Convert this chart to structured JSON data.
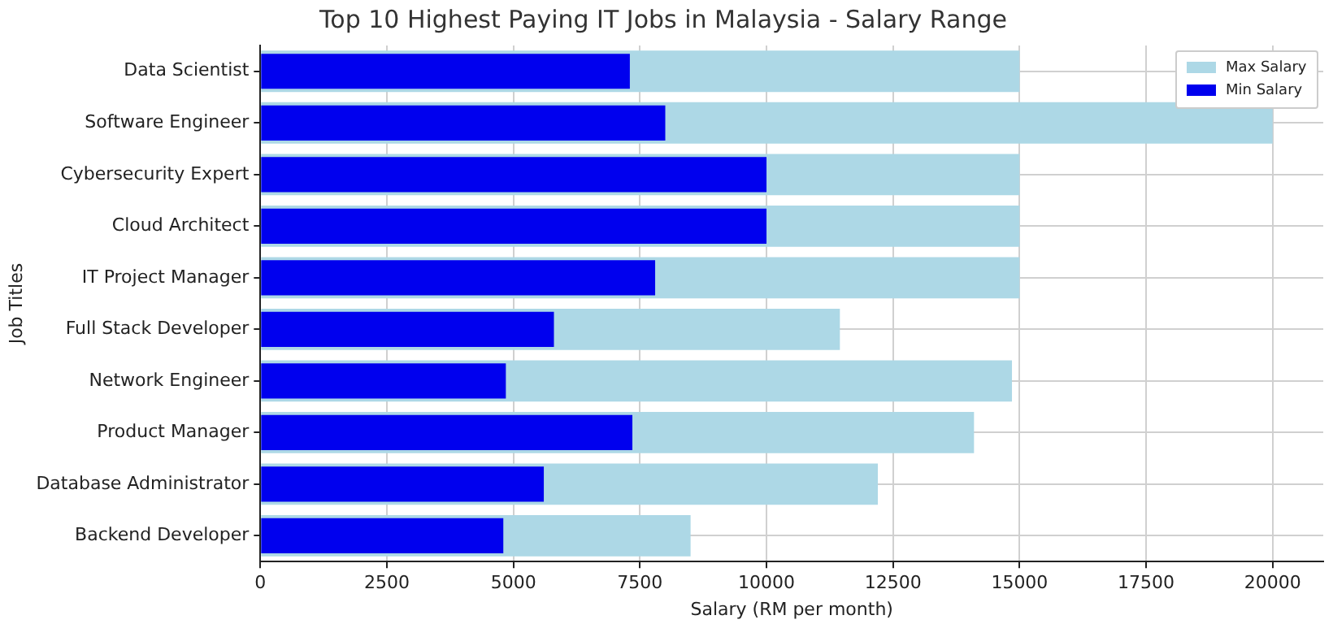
{
  "chart_data": {
    "type": "bar",
    "orientation": "horizontal",
    "title": "Top 10 Highest Paying IT Jobs in Malaysia - Salary Range",
    "xlabel": "Salary (RM per month)",
    "ylabel": "Job Titles",
    "categories": [
      "Data Scientist",
      "Software Engineer",
      "Cybersecurity Expert",
      "Cloud Architect",
      "IT Project Manager",
      "Full Stack Developer",
      "Network Engineer",
      "Product Manager",
      "Database Administrator",
      "Backend Developer"
    ],
    "series": [
      {
        "name": "Max Salary",
        "color": "#add8e6",
        "values": [
          15000,
          20000,
          15000,
          15000,
          15000,
          11450,
          14850,
          14100,
          12200,
          8500
        ]
      },
      {
        "name": "Min Salary",
        "color": "#0000ee",
        "values": [
          7300,
          8000,
          10000,
          10000,
          7800,
          5800,
          4850,
          7350,
          5600,
          4800
        ]
      }
    ],
    "xlim": [
      0,
      21000
    ],
    "xticks": [
      0,
      2500,
      5000,
      7500,
      10000,
      12500,
      15000,
      17500,
      20000
    ],
    "grid": true,
    "legend": "top right"
  }
}
